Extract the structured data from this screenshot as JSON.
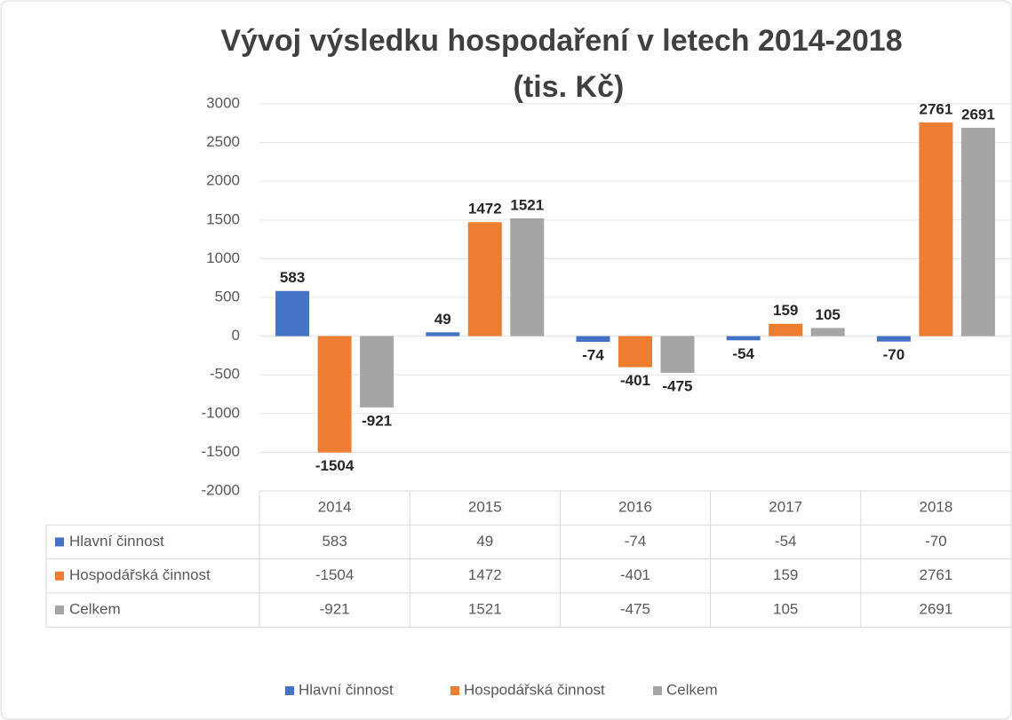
{
  "chart_data": {
    "type": "bar",
    "title": [
      "Vývoj výsledku hospodaření v letech 2014-2018",
      "(tis. Kč)"
    ],
    "categories": [
      "2014",
      "2015",
      "2016",
      "2017",
      "2018"
    ],
    "series": [
      {
        "name": "Hlavní činnost",
        "color": "#4472c4",
        "values": [
          583,
          49,
          -74,
          -54,
          -70
        ]
      },
      {
        "name": "Hospodářská činnost",
        "color": "#ed7d31",
        "values": [
          -1504,
          1472,
          -401,
          159,
          2761
        ]
      },
      {
        "name": "Celkem",
        "color": "#a5a5a5",
        "values": [
          -921,
          1521,
          -475,
          105,
          2691
        ]
      }
    ],
    "ylim": [
      -2000,
      3000
    ],
    "yticks": [
      -2000,
      -1500,
      -1000,
      -500,
      0,
      500,
      1000,
      1500,
      2000,
      2500,
      3000
    ],
    "grid": true,
    "data_table": true,
    "legend": "bottom"
  }
}
